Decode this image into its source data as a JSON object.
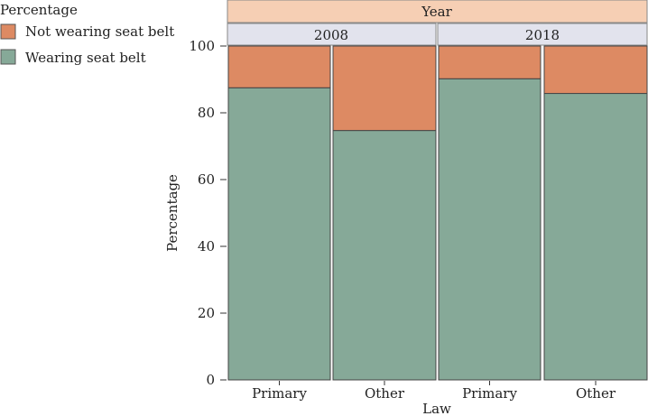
{
  "chart_data": {
    "type": "bar",
    "stacked": true,
    "legend": {
      "title": "Percentage",
      "placement": "top-left",
      "items": [
        {
          "label": "Not wearing seat belt",
          "color": "#dd8a63"
        },
        {
          "label": "Wearing seat belt",
          "color": "#86a998"
        }
      ]
    },
    "strip_title": "Year",
    "strip_title_color": "#f6cfb4",
    "panel_strip_color": "#e2e3ed",
    "panels": [
      {
        "label": "2008",
        "categories": [
          "Primary",
          "Other"
        ],
        "wearing": [
          87.5,
          74.7
        ],
        "not_wearing": [
          12.5,
          25.3
        ]
      },
      {
        "label": "2018",
        "categories": [
          "Primary",
          "Other"
        ],
        "wearing": [
          90.2,
          85.8
        ],
        "not_wearing": [
          9.8,
          14.2
        ]
      }
    ],
    "xlabel": "Law",
    "ylabel": "Percentage",
    "ylim": [
      0,
      100
    ],
    "yticks": [
      0,
      20,
      40,
      60,
      80,
      100
    ]
  }
}
